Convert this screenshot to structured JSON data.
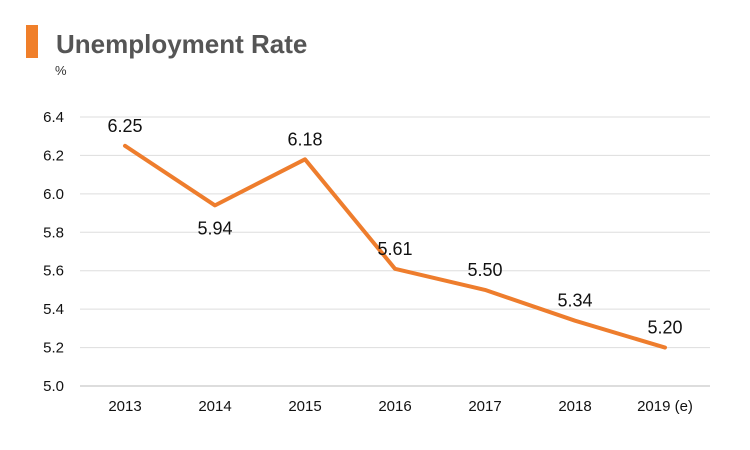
{
  "title": "Unemployment Rate",
  "unit": "%",
  "colors": {
    "line": "#ee7d2d",
    "accent": "#f07f2a",
    "grid": "#dddddd"
  },
  "chart_data": {
    "type": "line",
    "title": "Unemployment Rate",
    "ylabel": "%",
    "xlabel": "",
    "categories": [
      "2013",
      "2014",
      "2015",
      "2016",
      "2017",
      "2018",
      "2019 (e)"
    ],
    "series": [
      {
        "name": "Unemployment Rate",
        "values": [
          6.25,
          5.94,
          6.18,
          5.61,
          5.5,
          5.34,
          5.2
        ],
        "labels": [
          "6.25",
          "5.94",
          "6.18",
          "5.61",
          "5.50",
          "5.34",
          "5.20"
        ]
      }
    ],
    "ylim": [
      5.0,
      6.4
    ],
    "yticks": [
      5.0,
      5.2,
      5.4,
      5.6,
      5.8,
      6.0,
      6.2,
      6.4
    ],
    "ytick_labels": [
      "5.0",
      "5.2",
      "5.4",
      "5.6",
      "5.8",
      "6.0",
      "6.2",
      "6.4"
    ],
    "label_positions": [
      "above",
      "below",
      "above",
      "above",
      "above",
      "above",
      "above"
    ],
    "grid": true,
    "legend": "none"
  }
}
